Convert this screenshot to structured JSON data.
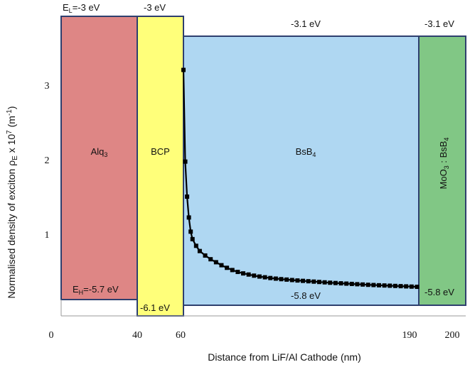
{
  "chart_data": {
    "type": "line",
    "xlabel": "Distance from LiF/Al Cathode (nm)",
    "ylabel": {
      "prefix": "Normalised density of exciton  ρ",
      "sub": "E",
      "mid": " x 10",
      "sup1": "7",
      "unit": " (m",
      "sup2": "-1",
      "end": ")"
    },
    "x_ticks": [
      "0",
      "40",
      "60",
      "190",
      "200"
    ],
    "y_ticks": [
      "1",
      "2",
      "3"
    ],
    "xlim": [
      0,
      200
    ],
    "ylim": [
      0,
      3.8
    ],
    "grid": false,
    "layers": [
      {
        "name": "Alq",
        "sub": "3",
        "x_range": [
          0,
          40
        ],
        "color": "#de8685",
        "lumo": [
          "E",
          "L",
          "=-3 eV"
        ],
        "homo": [
          "E",
          "H",
          "=-5.7 eV"
        ]
      },
      {
        "name": "BCP",
        "sub": "",
        "x_range": [
          40,
          60
        ],
        "color": "#ffff7a",
        "lumo": "-3 eV",
        "homo": "-6.1 eV"
      },
      {
        "name": "BsB",
        "sub": "4",
        "x_range": [
          60,
          190
        ],
        "color": "#afd7f2",
        "lumo": "-3.1 eV",
        "homo": "-5.8 eV"
      },
      {
        "name_parts": [
          "MoO",
          "3",
          " : BsB",
          "4"
        ],
        "x_range": [
          190,
          200
        ],
        "color": "#81c785",
        "lumo": "-3.1 eV",
        "homo": "-5.8 eV"
      }
    ],
    "series": [
      {
        "color": "#000000",
        "marker": "square",
        "x": [
          60,
          61,
          62,
          63,
          64,
          65,
          67,
          69,
          72,
          75,
          78,
          81,
          84,
          87,
          90,
          93,
          96,
          99,
          102,
          105,
          108,
          111,
          114,
          117,
          120,
          123,
          126,
          129,
          132,
          135,
          138,
          141,
          144,
          147,
          150,
          153,
          156,
          159,
          162,
          165,
          168,
          171,
          174,
          177,
          180,
          183,
          186,
          189
        ],
        "y": [
          3.3,
          2.07,
          1.6,
          1.32,
          1.13,
          1.03,
          0.94,
          0.87,
          0.81,
          0.76,
          0.72,
          0.68,
          0.645,
          0.615,
          0.59,
          0.57,
          0.555,
          0.54,
          0.528,
          0.518,
          0.508,
          0.5,
          0.493,
          0.487,
          0.481,
          0.475,
          0.47,
          0.465,
          0.46,
          0.455,
          0.45,
          0.445,
          0.441,
          0.437,
          0.433,
          0.429,
          0.425,
          0.421,
          0.417,
          0.414,
          0.411,
          0.408,
          0.405,
          0.402,
          0.399,
          0.396,
          0.393,
          0.39
        ]
      }
    ]
  }
}
